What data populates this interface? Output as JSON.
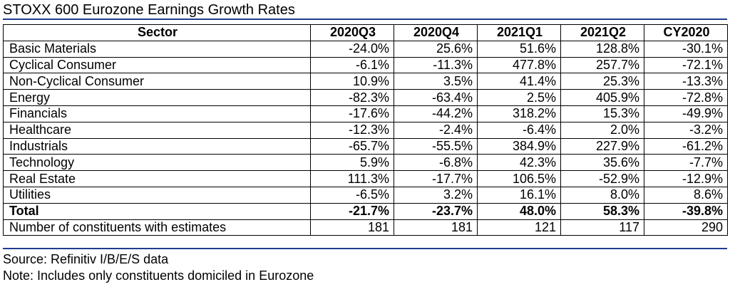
{
  "chart_data": {
    "type": "table",
    "title": "STOXX 600 Eurozone Earnings Growth Rates",
    "columns": [
      "Sector",
      "2020Q3",
      "2020Q4",
      "2021Q1",
      "2021Q2",
      "CY2020"
    ],
    "rows": [
      [
        "Basic Materials",
        "-24.0%",
        "25.6%",
        "51.6%",
        "128.8%",
        "-30.1%"
      ],
      [
        "Cyclical Consumer",
        "-6.1%",
        "-11.3%",
        "477.8%",
        "257.7%",
        "-72.1%"
      ],
      [
        "Non-Cyclical Consumer",
        "10.9%",
        "3.5%",
        "41.4%",
        "25.3%",
        "-13.3%"
      ],
      [
        "Energy",
        "-82.3%",
        "-63.4%",
        "2.5%",
        "405.9%",
        "-72.8%"
      ],
      [
        "Financials",
        "-17.6%",
        "-44.2%",
        "318.2%",
        "15.3%",
        "-49.9%"
      ],
      [
        "Healthcare",
        "-12.3%",
        "-2.4%",
        "-6.4%",
        "2.0%",
        "-3.2%"
      ],
      [
        "Industrials",
        "-65.7%",
        "-55.5%",
        "384.9%",
        "227.9%",
        "-61.2%"
      ],
      [
        "Technology",
        "5.9%",
        "-6.8%",
        "42.3%",
        "35.6%",
        "-7.7%"
      ],
      [
        "Real Estate",
        "111.3%",
        "-17.7%",
        "106.5%",
        "-52.9%",
        "-12.9%"
      ],
      [
        "Utilities",
        "-6.5%",
        "3.2%",
        "16.1%",
        "8.0%",
        "8.6%"
      ]
    ],
    "total": [
      "Total",
      "-21.7%",
      "-23.7%",
      "48.0%",
      "58.3%",
      "-39.8%"
    ],
    "constituents": [
      "Number of constituents with estimates",
      "181",
      "181",
      "121",
      "117",
      "290"
    ]
  },
  "footer": {
    "source": "Source: Refinitiv I/B/E/S data",
    "note": "Note: Includes only constituents domiciled in Eurozone"
  },
  "colors": {
    "rule": "#1f3c8f",
    "grid": "#000000",
    "text": "#000000"
  }
}
